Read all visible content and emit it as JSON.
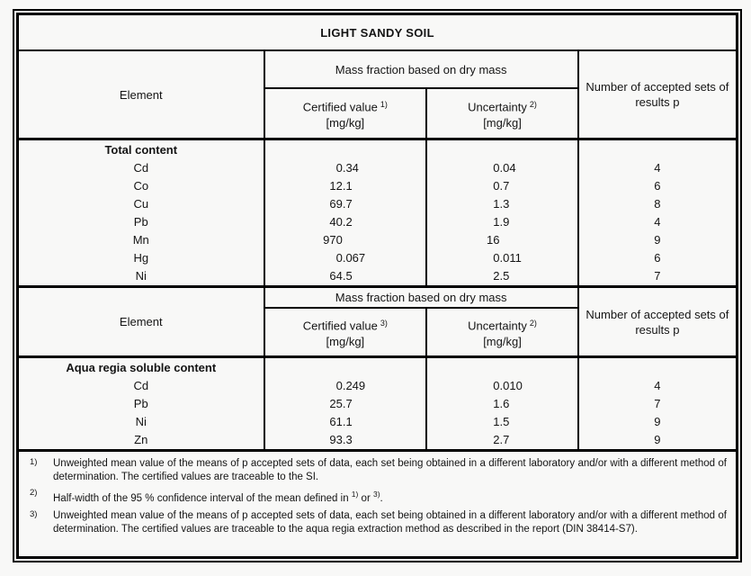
{
  "title": "LIGHT SANDY SOIL",
  "columns": {
    "element": "Element",
    "mass_fraction_group": "Mass fraction based on dry mass",
    "unit": "[mg/kg]",
    "accepted": "Number of accepted sets of results p"
  },
  "sections": [
    {
      "label": "Total content",
      "certified_header": {
        "label": "Certified value",
        "sup": "1)"
      },
      "uncertainty_header": {
        "label": "Uncertainty",
        "sup": "2)"
      },
      "rows": [
        {
          "element": "Cd",
          "certified": "0.34",
          "uncertainty": "0.04",
          "p": "4"
        },
        {
          "element": "Co",
          "certified": "12.1",
          "uncertainty": "0.7",
          "p": "6"
        },
        {
          "element": "Cu",
          "certified": "69.7",
          "uncertainty": "1.3",
          "p": "8"
        },
        {
          "element": "Pb",
          "certified": "40.2",
          "uncertainty": "1.9",
          "p": "4"
        },
        {
          "element": "Mn",
          "certified": "970",
          "uncertainty": "16",
          "p": "9"
        },
        {
          "element": "Hg",
          "certified": "0.067",
          "uncertainty": "0.011",
          "p": "6"
        },
        {
          "element": "Ni",
          "certified": "64.5",
          "uncertainty": "2.5",
          "p": "7"
        }
      ]
    },
    {
      "label": "Aqua regia soluble content",
      "certified_header": {
        "label": "Certified value",
        "sup": "3)"
      },
      "uncertainty_header": {
        "label": "Uncertainty",
        "sup": "2)"
      },
      "rows": [
        {
          "element": "Cd",
          "certified": "0.249",
          "uncertainty": "0.010",
          "p": "4"
        },
        {
          "element": "Pb",
          "certified": "25.7",
          "uncertainty": "1.6",
          "p": "7"
        },
        {
          "element": "Ni",
          "certified": "61.1",
          "uncertainty": "1.5",
          "p": "9"
        },
        {
          "element": "Zn",
          "certified": "93.3",
          "uncertainty": "2.7",
          "p": "9"
        }
      ]
    }
  ],
  "footnotes": [
    {
      "marker": "1)",
      "text": "Unweighted mean value of the means of p accepted sets of data, each set being obtained in a different laboratory and/or with a different method of determination. The certified values are traceable to the SI."
    },
    {
      "marker": "2)",
      "pre": "Half-width of the 95 % confidence interval of the mean defined in ",
      "ref1": "1)",
      "mid": " or ",
      "ref2": "3)",
      "post": "."
    },
    {
      "marker": "3)",
      "text": "Unweighted mean value of the means of p accepted sets of data, each set being obtained in a different laboratory and/or with a different method of determination. The certified values are traceable to the aqua regia extraction method as described in the report (DIN 38414-S7)."
    }
  ],
  "colors": {
    "background": "#f8f8f7",
    "border": "#000000",
    "text": "#141414"
  }
}
